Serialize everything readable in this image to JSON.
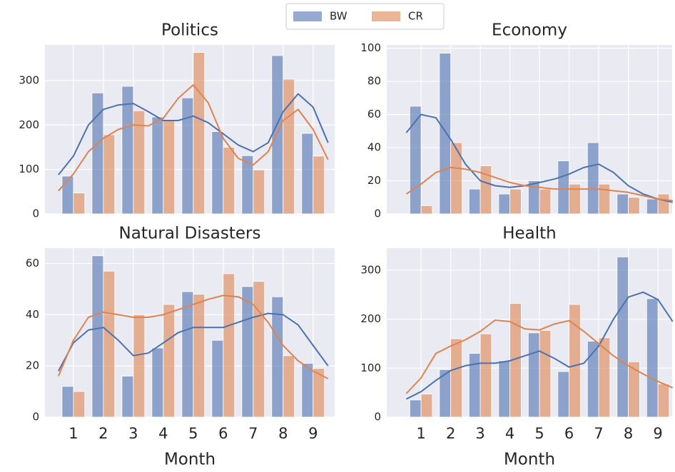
{
  "chart_data": [
    {
      "type": "bar",
      "title": "Politics",
      "x": [
        1,
        2,
        3,
        4,
        5,
        6,
        7,
        8,
        9
      ],
      "xlim": [
        0.05,
        9.72
      ],
      "ylim": [
        0,
        380
      ],
      "yticks": [
        0,
        100,
        200,
        300
      ],
      "grid": true,
      "kde_x": [
        0.5,
        1,
        1.5,
        2,
        2.5,
        3,
        3.5,
        4,
        4.5,
        5,
        5.5,
        6,
        6.5,
        7,
        7.5,
        8,
        8.5,
        9,
        9.5
      ],
      "series": [
        {
          "name": "BW",
          "color": "#4c72b0",
          "values": [
            85,
            272,
            287,
            218,
            261,
            185,
            131,
            356,
            181
          ],
          "kde": [
            88,
            130,
            200,
            235,
            245,
            248,
            230,
            210,
            210,
            220,
            205,
            180,
            155,
            140,
            160,
            230,
            270,
            240,
            160
          ]
        },
        {
          "name": "CR",
          "color": "#dd8452",
          "values": [
            47,
            178,
            232,
            212,
            363,
            150,
            99,
            303,
            130
          ],
          "kde": [
            52,
            90,
            140,
            170,
            190,
            200,
            198,
            215,
            260,
            290,
            250,
            170,
            125,
            110,
            140,
            210,
            235,
            190,
            122
          ]
        }
      ]
    },
    {
      "type": "bar",
      "title": "Economy",
      "x": [
        1,
        2,
        3,
        4,
        5,
        6,
        7,
        8,
        9
      ],
      "xlim": [
        -0.16,
        9.48
      ],
      "ylim": [
        0,
        102
      ],
      "yticks": [
        0,
        20,
        40,
        60,
        80,
        100
      ],
      "grid": true,
      "kde_x": [
        0.5,
        1,
        1.5,
        2,
        2.5,
        3,
        3.5,
        4,
        4.5,
        5,
        5.5,
        6,
        6.5,
        7,
        7.5,
        8,
        8.5,
        9,
        9.5
      ],
      "series": [
        {
          "color": "#4c72b0",
          "values": [
            65,
            97,
            15,
            12,
            20,
            32,
            43,
            12,
            9
          ],
          "kde": [
            49,
            60,
            58,
            45,
            30,
            20,
            17,
            16,
            17,
            19,
            21,
            24,
            28,
            30,
            25,
            17,
            12,
            9,
            7
          ]
        },
        {
          "color": "#dd8452",
          "values": [
            5,
            43,
            29,
            15,
            15,
            18,
            18,
            10,
            12
          ],
          "kde": [
            12,
            18,
            25,
            28,
            27,
            25,
            22,
            19,
            17,
            16,
            15,
            15,
            15,
            15,
            14,
            13,
            11,
            9,
            8
          ]
        }
      ]
    },
    {
      "type": "bar",
      "title": "Natural Disasters",
      "x_label": "Month",
      "x": [
        1,
        2,
        3,
        4,
        5,
        6,
        7,
        8,
        9
      ],
      "xticks": [
        1,
        2,
        3,
        4,
        5,
        6,
        7,
        8,
        9
      ],
      "xlim": [
        0.05,
        9.72
      ],
      "ylim": [
        0,
        66
      ],
      "yticks": [
        0,
        20,
        40,
        60
      ],
      "grid": true,
      "kde_x": [
        0.5,
        1,
        1.5,
        2,
        2.5,
        3,
        3.5,
        4,
        4.5,
        5,
        5.5,
        6,
        6.5,
        7,
        7.5,
        8,
        8.5,
        9,
        9.5
      ],
      "series": [
        {
          "color": "#4c72b0",
          "values": [
            12,
            63,
            16,
            27,
            49,
            30,
            51,
            47,
            21
          ],
          "kde": [
            18,
            29,
            34,
            35,
            30,
            24,
            25,
            29,
            33,
            35,
            35,
            35,
            37,
            39,
            40.5,
            40,
            36,
            28,
            20
          ]
        },
        {
          "color": "#dd8452",
          "values": [
            10,
            57,
            40,
            44,
            48,
            56,
            53,
            24,
            19
          ],
          "kde": [
            16,
            30,
            39,
            41,
            40,
            39,
            39,
            40,
            42,
            44,
            46,
            47.5,
            47,
            44,
            37,
            28,
            22,
            18,
            15
          ]
        }
      ]
    },
    {
      "type": "bar",
      "title": "Health",
      "x_label": "Month",
      "x": [
        1,
        2,
        3,
        4,
        5,
        6,
        7,
        8,
        9
      ],
      "xticks": [
        1,
        2,
        3,
        4,
        5,
        6,
        7,
        8,
        9
      ],
      "xlim": [
        -0.16,
        9.48
      ],
      "ylim": [
        0,
        345
      ],
      "yticks": [
        0,
        100,
        200,
        300
      ],
      "grid": true,
      "kde_x": [
        0.5,
        1,
        1.5,
        2,
        2.5,
        3,
        3.5,
        4,
        4.5,
        5,
        5.5,
        6,
        6.5,
        7,
        7.5,
        8,
        8.5,
        9,
        9.5
      ],
      "series": [
        {
          "color": "#4c72b0",
          "values": [
            35,
            97,
            130,
            115,
            172,
            93,
            155,
            327,
            242
          ],
          "kde": [
            37,
            52,
            75,
            95,
            105,
            110,
            110,
            115,
            125,
            135,
            120,
            102,
            110,
            145,
            200,
            245,
            255,
            240,
            195
          ]
        },
        {
          "color": "#dd8452",
          "values": [
            47,
            160,
            170,
            232,
            177,
            230,
            162,
            113,
            68
          ],
          "kde": [
            48,
            80,
            130,
            145,
            158,
            175,
            198,
            195,
            180,
            178,
            190,
            197,
            175,
            150,
            125,
            105,
            88,
            73,
            60
          ]
        }
      ]
    }
  ]
}
